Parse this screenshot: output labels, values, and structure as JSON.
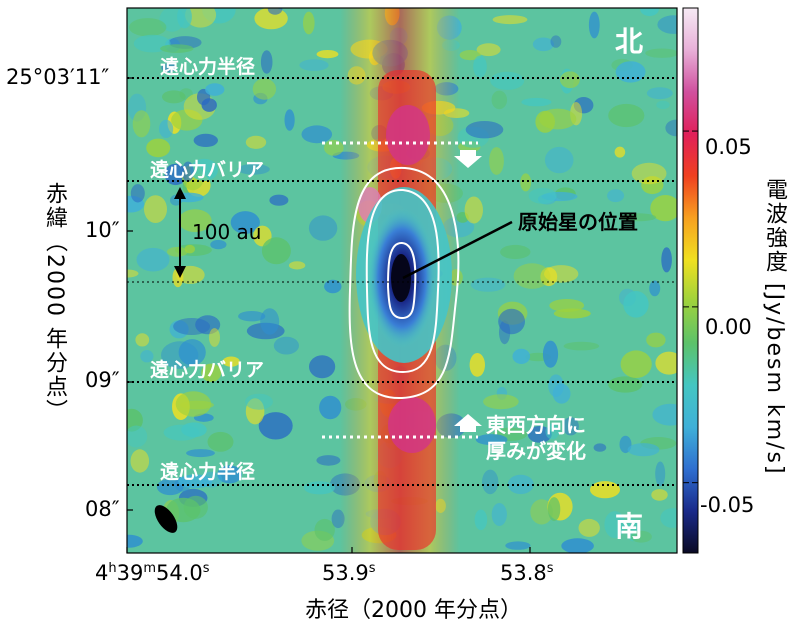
{
  "annotations": {
    "north": "北",
    "south": "南",
    "centrifugal_radius_top": "遠心力半径",
    "centrifugal_barrier_top": "遠心力バリア",
    "centrifugal_barrier_bottom": "遠心力バリア",
    "centrifugal_radius_bottom": "遠心力半径",
    "scale_bar": "100 au",
    "protostar_position": "原始星の位置",
    "thickness_change_line1": "東西方向に",
    "thickness_change_line2": "厚みが変化"
  },
  "axes": {
    "y_ticks": [
      {
        "label": "25°03′11″"
      },
      {
        "label": "10″"
      },
      {
        "label": "09″"
      },
      {
        "label": "08″"
      }
    ],
    "x_ticks": [
      {
        "h": "4",
        "hu": "h",
        "m": "39",
        "mu": "m",
        "s": "54.0",
        "su": "s"
      },
      {
        "s": "53.9",
        "su": "s"
      },
      {
        "s": "53.8",
        "su": "s"
      }
    ],
    "x_label": "赤径（2000 年分点）",
    "y_label": "赤緯（2000 年分点）"
  },
  "colorbar": {
    "label": "電波強度 [Jy/besm km/s]",
    "ticks": [
      "0.05",
      "0.00",
      "-0.05"
    ],
    "ticks_values": [
      0.05,
      0.0,
      -0.05
    ],
    "range": [
      -0.07,
      0.085
    ],
    "colors": [
      "#0a0a24",
      "#1a2a8a",
      "#2f6fd0",
      "#3fb0d8",
      "#44c6c2",
      "#5cc26a",
      "#9ed23c",
      "#f0e020",
      "#f7a020",
      "#f04020",
      "#e0205a",
      "#d0509e",
      "#e8b0d8",
      "#f6eaf4"
    ]
  }
}
